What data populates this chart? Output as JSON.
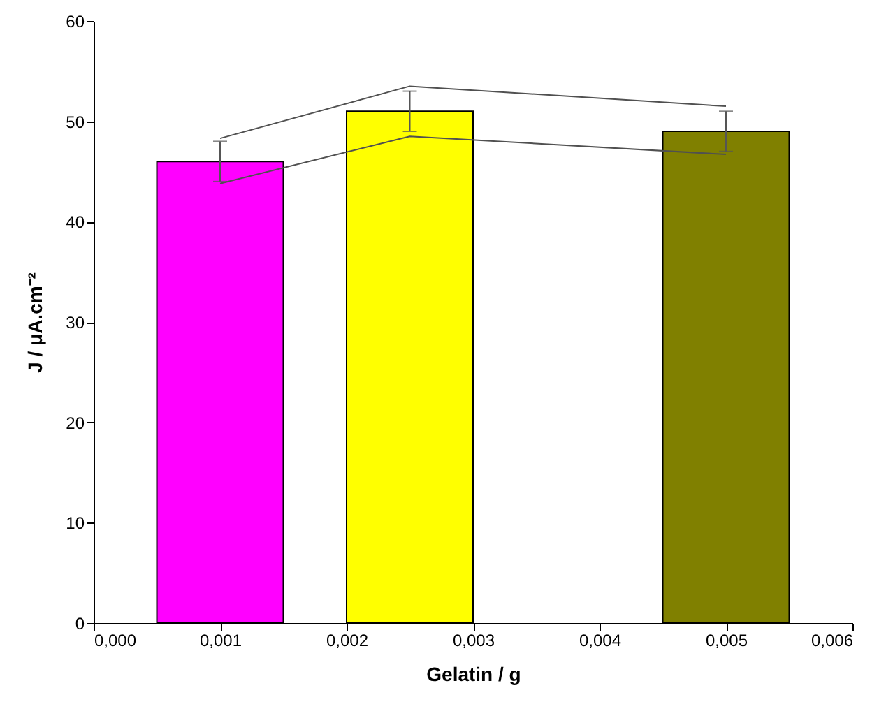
{
  "chart_data": {
    "type": "bar",
    "xlabel": "Gelatin / g",
    "ylabel": "J / μA.cm⁻²",
    "xlim": [
      0,
      0.006
    ],
    "xticks": [
      {
        "value": 0,
        "label": "0,000"
      },
      {
        "value": 0.001,
        "label": "0,001"
      },
      {
        "value": 0.002,
        "label": "0,002"
      },
      {
        "value": 0.003,
        "label": "0,003"
      },
      {
        "value": 0.004,
        "label": "0,004"
      },
      {
        "value": 0.005,
        "label": "0,005"
      },
      {
        "value": 0.006,
        "label": "0,006"
      }
    ],
    "ylim": [
      0,
      60
    ],
    "yticks": [
      0,
      10,
      20,
      30,
      40,
      50,
      60
    ],
    "grid": false,
    "series": [
      {
        "x": [
          0.001,
          0.0025,
          0.005
        ],
        "values": [
          46,
          51,
          49
        ],
        "colors": [
          "#ff00ff",
          "#ffff00",
          "#808000"
        ],
        "errors": [
          2,
          2,
          2
        ]
      },
      {
        "type": "line",
        "x": [
          0.001,
          0.0025,
          0.005
        ],
        "values": [
          48.3,
          53.5,
          51.5
        ],
        "color": "#505050"
      },
      {
        "type": "line",
        "x": [
          0.001,
          0.0025,
          0.005
        ],
        "values": [
          43.8,
          48.5,
          46.7
        ],
        "color": "#505050"
      }
    ]
  }
}
